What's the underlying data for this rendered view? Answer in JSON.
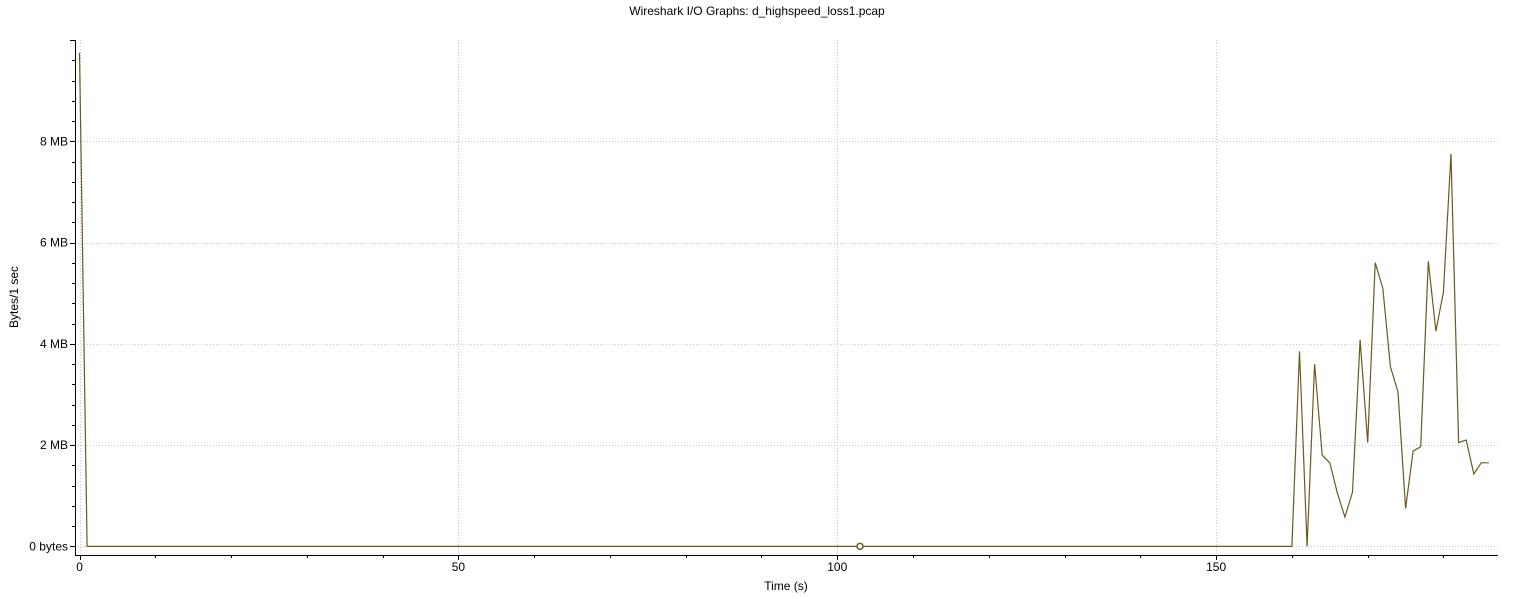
{
  "chart_data": {
    "type": "line",
    "title": "Wireshark I/O Graphs: d_highspeed_loss1.pcap",
    "xlabel": "Time (s)",
    "ylabel": "Bytes/1 sec",
    "xlim": [
      -0.6,
      187.2
    ],
    "ylim": [
      -0.17,
      10.0
    ],
    "x_ticks": [
      0,
      50,
      100,
      150
    ],
    "x_tick_labels": [
      "0",
      "50",
      "100",
      "150"
    ],
    "y_ticks": [
      0,
      2,
      4,
      6,
      8
    ],
    "y_tick_labels": [
      "0 bytes",
      "2 MB",
      "4 MB",
      "6 MB",
      "8 MB"
    ],
    "grid": true,
    "line_color": "#6b5a1e",
    "series": [
      {
        "x": [
          0,
          1,
          2,
          10,
          20,
          30,
          40,
          50,
          60,
          70,
          80,
          90,
          100,
          110,
          120,
          130,
          140,
          150,
          160,
          161,
          162,
          163,
          164,
          165,
          166,
          167,
          168,
          169,
          170,
          171,
          172,
          173,
          174,
          175,
          176,
          177,
          178,
          179,
          180,
          181,
          182,
          183,
          184,
          185,
          186
        ],
        "values": [
          9.75,
          0,
          0,
          0,
          0,
          0,
          0,
          0,
          0,
          0,
          0,
          0,
          0,
          0,
          0,
          0,
          0,
          0,
          0,
          3.85,
          0,
          3.6,
          1.8,
          1.65,
          1.05,
          0.58,
          1.07,
          4.08,
          2.05,
          5.6,
          5.1,
          3.55,
          3.05,
          0.75,
          1.88,
          1.97,
          5.63,
          4.25,
          5.02,
          7.75,
          2.05,
          2.1,
          1.43,
          1.65,
          1.65
        ]
      }
    ],
    "markers": [
      {
        "x": 103,
        "y": 0
      }
    ]
  }
}
